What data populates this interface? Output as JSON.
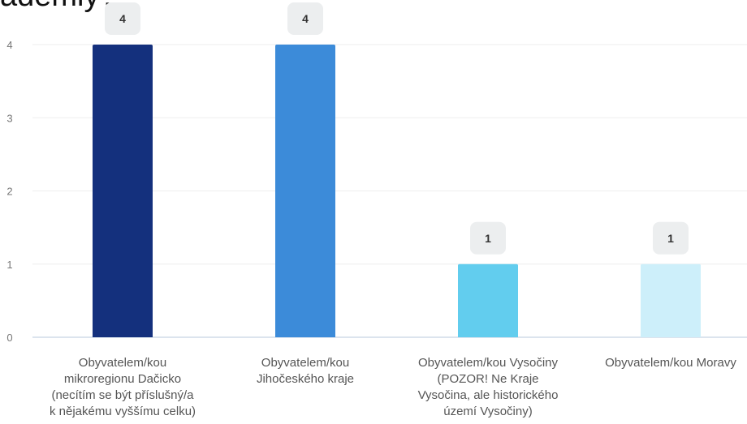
{
  "title_fragment": "ádemiy?",
  "chart_data": {
    "type": "bar",
    "title": "",
    "xlabel": "",
    "ylabel": "",
    "ylim": [
      0,
      4
    ],
    "y_ticks": [
      "0",
      "1",
      "2",
      "3",
      "4"
    ],
    "grid": true,
    "categories": [
      "Obyvatelem/kou mikroregionu Dačicko (necítím se být příslušný/a k nějakému vyššímu celku)",
      "Obyvatelem/kou Jihočeského kraje",
      "Obyvatelem/kou Vysočiny (POZOR! Ne Kraje Vysočina, ale historického území Vysočiny)",
      "Obyvatelem/kou Moravy"
    ],
    "category_lines": [
      [
        "Obyvatelem/kou",
        "mikroregionu Dačicko",
        "(necítím se být příslušný/a",
        "k nějakému vyššímu celku)"
      ],
      [
        "Obyvatelem/kou",
        "Jihočeského kraje"
      ],
      [
        "Obyvatelem/kou Vysočiny",
        "(POZOR! Ne Kraje",
        "Vysočina, ale historického",
        "území Vysočiny)"
      ],
      [
        "Obyvatelem/kou Moravy"
      ]
    ],
    "values": [
      4,
      4,
      1,
      1
    ],
    "data_labels": [
      "4",
      "4",
      "1",
      "1"
    ],
    "colors": [
      "#14307d",
      "#3c8bd9",
      "#62cdee",
      "#cdeffa"
    ]
  }
}
